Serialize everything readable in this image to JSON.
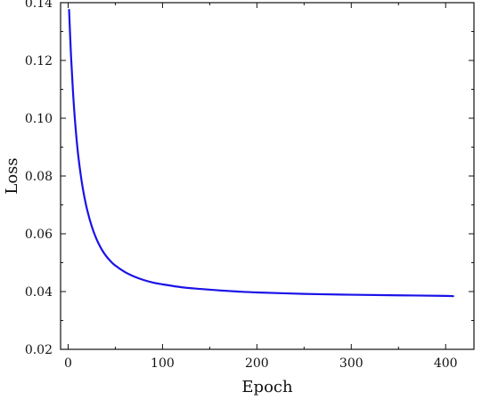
{
  "chart_data": {
    "type": "line",
    "xlabel": "Epoch",
    "ylabel": "Loss",
    "xlim": [
      -8,
      430
    ],
    "ylim": [
      0.02,
      0.14
    ],
    "x_ticks": [
      0,
      100,
      200,
      300,
      400
    ],
    "y_ticks": [
      0.02,
      0.04,
      0.06,
      0.08,
      0.1,
      0.12,
      0.14
    ],
    "x_tick_labels": [
      "0",
      "100",
      "200",
      "300",
      "400"
    ],
    "y_tick_labels": [
      "0.02",
      "0.04",
      "0.06",
      "0.08",
      "0.10",
      "0.12",
      "0.14"
    ],
    "grid": false,
    "series": [
      {
        "color": "#1a12e8",
        "x": [
          1,
          3,
          5,
          7,
          10,
          13,
          16,
          20,
          25,
          30,
          35,
          40,
          45,
          50,
          60,
          70,
          80,
          90,
          100,
          120,
          140,
          160,
          180,
          200,
          250,
          300,
          350,
          400,
          408
        ],
        "y": [
          0.1375,
          0.122,
          0.11,
          0.1003,
          0.0892,
          0.0812,
          0.0749,
          0.0685,
          0.0626,
          0.0582,
          0.0549,
          0.0524,
          0.0505,
          0.049,
          0.0468,
          0.0452,
          0.044,
          0.0431,
          0.0425,
          0.0415,
          0.0409,
          0.0404,
          0.04,
          0.0397,
          0.0392,
          0.0389,
          0.0387,
          0.0385,
          0.0384
        ]
      }
    ]
  }
}
